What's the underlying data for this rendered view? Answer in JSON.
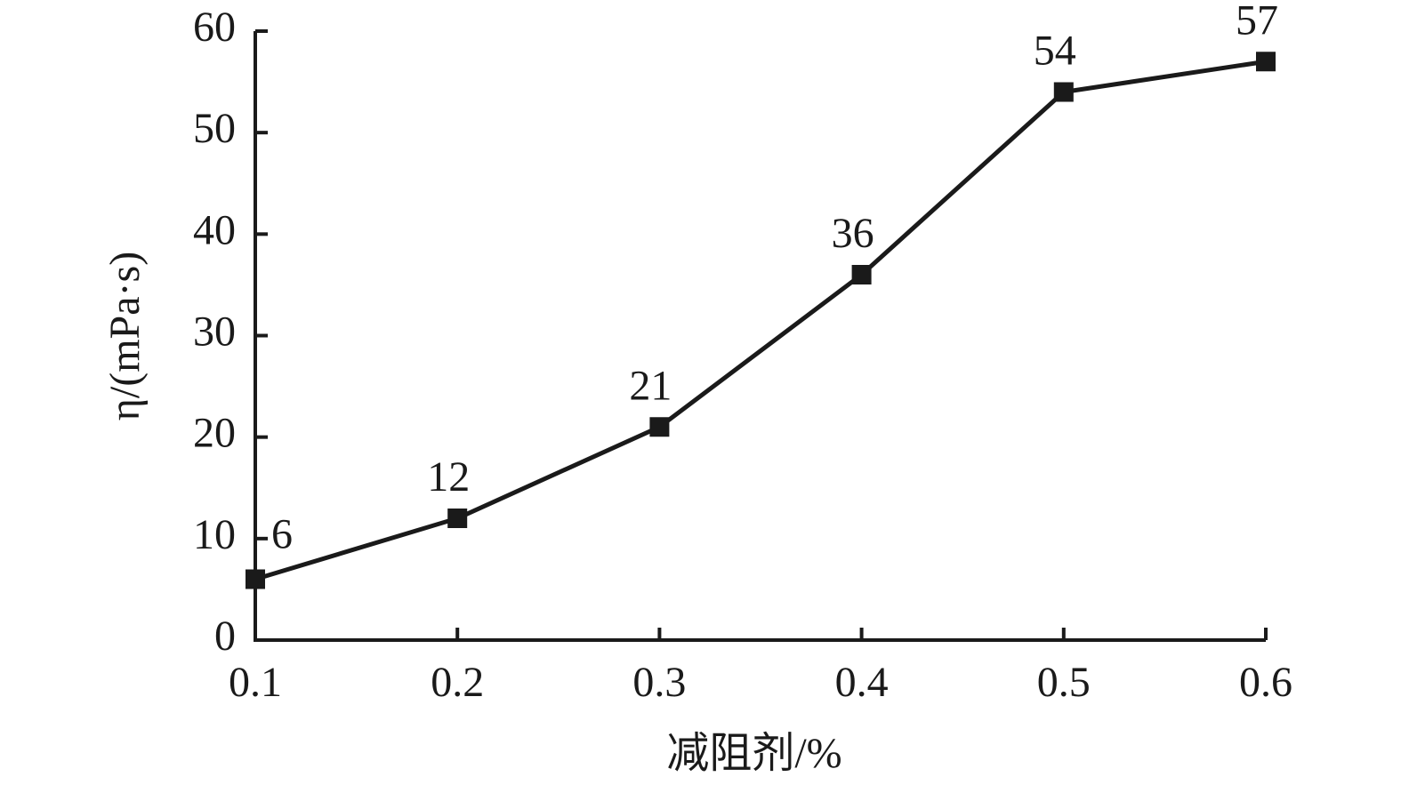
{
  "chart_data": {
    "type": "line",
    "x_label": "减阻剂/%",
    "y_label": "η/(mPa·s)",
    "x": [
      0.1,
      0.2,
      0.3,
      0.4,
      0.5,
      0.6
    ],
    "series": [
      {
        "color": "#1a1a1a",
        "values": [
          6,
          12,
          21,
          36,
          54,
          57
        ]
      }
    ],
    "xlim": [
      0.1,
      0.6
    ],
    "xticks": [
      0.1,
      0.2,
      0.3,
      0.4,
      0.5,
      0.6
    ],
    "ylim": [
      0,
      60
    ],
    "yticks": [
      0,
      10,
      20,
      30,
      40,
      50,
      60
    ],
    "grid": false
  }
}
